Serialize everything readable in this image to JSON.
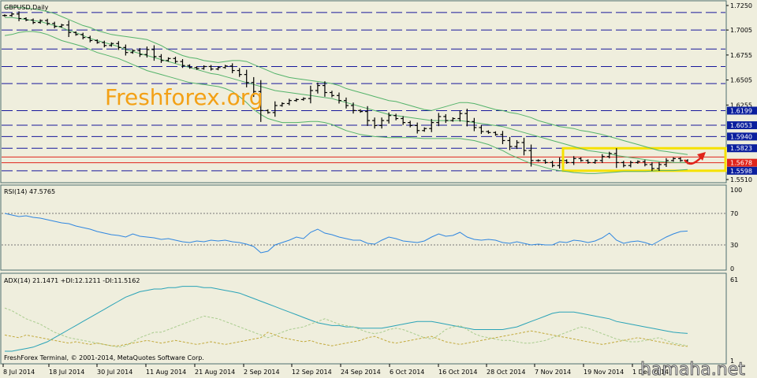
{
  "chart_data": [
    {
      "type": "ohlc",
      "title": "GBPUSD,Daily",
      "ylim": [
        1.551,
        1.725
      ],
      "price_ticks": [
        "1.7250",
        "1.7005",
        "1.6755",
        "1.6505",
        "1.6255",
        "1.5510"
      ],
      "level_labels": [
        {
          "text": "1.6199",
          "price": 1.6199,
          "color": "#0b1f9e"
        },
        {
          "text": "1.6053",
          "price": 1.6053,
          "color": "#0b1f9e"
        },
        {
          "text": "1.5940",
          "price": 1.594,
          "color": "#0b1f9e"
        },
        {
          "text": "1.5823",
          "price": 1.5823,
          "color": "#0b1f9e"
        },
        {
          "text": "1.5678",
          "price": 1.5678,
          "color": "#e0241b"
        },
        {
          "text": "1.5598",
          "price": 1.5598,
          "color": "#0b1f9e"
        }
      ],
      "dashed_levels": [
        1.718,
        1.7005,
        1.6815,
        1.664,
        1.647,
        1.6199,
        1.6053,
        1.594,
        1.5823,
        1.5598
      ],
      "red_levels": [
        1.5735,
        1.5678
      ],
      "yellow_box": {
        "from": 1.5598,
        "to": 1.5823
      },
      "close": [
        1.715,
        1.7165,
        1.712,
        1.7105,
        1.708,
        1.71,
        1.707,
        1.704,
        1.7055,
        1.698,
        1.696,
        1.693,
        1.69,
        1.688,
        1.685,
        1.687,
        1.683,
        1.678,
        1.68,
        1.676,
        1.681,
        1.674,
        1.67,
        1.672,
        1.669,
        1.665,
        1.663,
        1.662,
        1.664,
        1.6615,
        1.663,
        1.6645,
        1.66,
        1.656,
        1.648,
        1.639,
        1.62,
        1.618,
        1.625,
        1.627,
        1.63,
        1.631,
        1.632,
        1.64,
        1.645,
        1.638,
        1.635,
        1.63,
        1.625,
        1.62,
        1.619,
        1.61,
        1.605,
        1.61,
        1.615,
        1.612,
        1.608,
        1.605,
        1.6,
        1.602,
        1.608,
        1.614,
        1.61,
        1.612,
        1.617,
        1.609,
        1.603,
        1.599,
        1.598,
        1.596,
        1.59,
        1.584,
        1.588,
        1.58,
        1.57,
        1.57,
        1.568,
        1.565,
        1.57,
        1.568,
        1.572,
        1.57,
        1.568,
        1.57,
        1.574,
        1.577,
        1.568,
        1.565,
        1.568,
        1.569,
        1.566,
        1.562,
        1.566,
        1.57,
        1.572,
        1.57,
        1.5678
      ],
      "bb_upper": [
        1.723,
        1.7235,
        1.723,
        1.7225,
        1.7215,
        1.7205,
        1.719,
        1.717,
        1.714,
        1.711,
        1.708,
        1.705,
        1.703,
        1.7,
        1.698,
        1.696,
        1.695,
        1.694,
        1.693,
        1.692,
        1.691,
        1.688,
        1.685,
        1.681,
        1.678,
        1.675,
        1.673,
        1.672,
        1.67,
        1.669,
        1.668,
        1.669,
        1.67,
        1.67,
        1.669,
        1.666,
        1.663,
        1.66,
        1.657,
        1.655,
        1.653,
        1.652,
        1.651,
        1.65,
        1.649,
        1.648,
        1.647,
        1.645,
        1.642,
        1.64,
        1.638,
        1.636,
        1.634,
        1.632,
        1.63,
        1.629,
        1.627,
        1.625,
        1.623,
        1.621,
        1.62,
        1.622,
        1.624,
        1.626,
        1.628,
        1.628,
        1.627,
        1.625,
        1.623,
        1.621,
        1.62,
        1.618,
        1.617,
        1.615,
        1.613,
        1.61,
        1.608,
        1.606,
        1.604,
        1.603,
        1.602,
        1.6,
        1.599,
        1.5975,
        1.596,
        1.594,
        1.592,
        1.59,
        1.588,
        1.586,
        1.584,
        1.582,
        1.58,
        1.579,
        1.578,
        1.577,
        1.576
      ],
      "bb_middle": [
        1.713,
        1.713,
        1.712,
        1.711,
        1.71,
        1.709,
        1.707,
        1.705,
        1.703,
        1.7,
        1.698,
        1.695,
        1.692,
        1.69,
        1.688,
        1.686,
        1.684,
        1.681,
        1.679,
        1.677,
        1.675,
        1.673,
        1.671,
        1.669,
        1.667,
        1.665,
        1.663,
        1.661,
        1.659,
        1.657,
        1.656,
        1.654,
        1.652,
        1.65,
        1.648,
        1.646,
        1.644,
        1.642,
        1.64,
        1.639,
        1.638,
        1.637,
        1.636,
        1.635,
        1.634,
        1.633,
        1.632,
        1.63,
        1.628,
        1.626,
        1.624,
        1.622,
        1.62,
        1.618,
        1.616,
        1.615,
        1.614,
        1.613,
        1.612,
        1.611,
        1.61,
        1.61,
        1.61,
        1.61,
        1.61,
        1.609,
        1.608,
        1.607,
        1.606,
        1.605,
        1.604,
        1.602,
        1.6,
        1.598,
        1.596,
        1.594,
        1.592,
        1.59,
        1.588,
        1.586,
        1.584,
        1.582,
        1.58,
        1.579,
        1.578,
        1.577,
        1.575,
        1.574,
        1.573,
        1.572,
        1.571,
        1.57,
        1.569,
        1.5685,
        1.568,
        1.568,
        1.568
      ],
      "bb_lower": [
        1.695,
        1.696,
        1.698,
        1.699,
        1.699,
        1.698,
        1.696,
        1.693,
        1.69,
        1.688,
        1.686,
        1.684,
        1.681,
        1.678,
        1.676,
        1.674,
        1.672,
        1.669,
        1.666,
        1.663,
        1.66,
        1.658,
        1.656,
        1.654,
        1.652,
        1.65,
        1.648,
        1.647,
        1.646,
        1.645,
        1.644,
        1.642,
        1.639,
        1.634,
        1.628,
        1.621,
        1.616,
        1.612,
        1.61,
        1.608,
        1.608,
        1.608,
        1.6085,
        1.609,
        1.609,
        1.608,
        1.606,
        1.603,
        1.6,
        1.598,
        1.596,
        1.595,
        1.594,
        1.5935,
        1.593,
        1.593,
        1.593,
        1.593,
        1.5925,
        1.592,
        1.592,
        1.592,
        1.592,
        1.592,
        1.592,
        1.591,
        1.59,
        1.588,
        1.586,
        1.583,
        1.58,
        1.576,
        1.573,
        1.57,
        1.567,
        1.565,
        1.563,
        1.561,
        1.56,
        1.559,
        1.558,
        1.5575,
        1.557,
        1.557,
        1.5575,
        1.558,
        1.5585,
        1.559,
        1.559,
        1.559,
        1.559,
        1.5595,
        1.56,
        1.56,
        1.56,
        1.5605,
        1.561
      ]
    },
    {
      "type": "line",
      "title": "RSI(14) 47.5765",
      "ylim": [
        0,
        100
      ],
      "ticks": [
        "100",
        "70",
        "30",
        "0"
      ],
      "levels": [
        70,
        30
      ],
      "values": [
        70,
        68,
        66,
        67,
        65,
        64,
        62,
        60,
        58,
        57,
        54,
        52,
        50,
        47,
        45,
        43,
        42,
        40,
        44,
        41,
        40,
        39,
        37,
        38,
        36,
        34,
        33,
        35,
        34,
        36,
        35,
        36,
        34,
        33,
        31,
        28,
        20,
        22,
        30,
        33,
        36,
        40,
        38,
        46,
        50,
        45,
        43,
        40,
        38,
        36,
        36,
        32,
        31,
        36,
        40,
        38,
        35,
        34,
        33,
        35,
        40,
        44,
        41,
        42,
        46,
        40,
        37,
        36,
        37,
        36,
        33,
        32,
        34,
        32,
        30,
        31,
        30,
        30,
        34,
        33,
        36,
        35,
        33,
        35,
        39,
        45,
        36,
        32,
        34,
        35,
        33,
        30,
        35,
        40,
        44,
        47,
        47.5765
      ]
    },
    {
      "type": "line",
      "title": "ADX(14) 21.1471 +DI:12.1211 -DI:11.5162",
      "ticks": [
        "61",
        "1"
      ],
      "series": [
        {
          "name": "ADX",
          "color": "#2aa3b7",
          "values": [
            8,
            8,
            9,
            10,
            11,
            13,
            15,
            18,
            21,
            24,
            27,
            30,
            33,
            36,
            39,
            42,
            45,
            48,
            50,
            52,
            53,
            54,
            54,
            55,
            55,
            56,
            56,
            56,
            55,
            55,
            54,
            53,
            52,
            51,
            49,
            47,
            45,
            43,
            41,
            39,
            37,
            35,
            33,
            31,
            29,
            28,
            27,
            27,
            26,
            26,
            25,
            25,
            25,
            25,
            26,
            27,
            28,
            29,
            30,
            30,
            30,
            29,
            28,
            27,
            26,
            25,
            24,
            24,
            24,
            24,
            24,
            25,
            26,
            28,
            30,
            32,
            34,
            36,
            37,
            37,
            37,
            36,
            35,
            34,
            33,
            32,
            30,
            29,
            28,
            27,
            26,
            25,
            24,
            23,
            22,
            21.5,
            21.1471
          ]
        },
        {
          "name": "+DI",
          "color": "#a9cc8e",
          "values": [
            40,
            38,
            35,
            32,
            30,
            28,
            25,
            22,
            20,
            18,
            17,
            16,
            15,
            14,
            13,
            12,
            11,
            12,
            15,
            18,
            20,
            22,
            22,
            24,
            26,
            28,
            30,
            32,
            34,
            33,
            32,
            30,
            28,
            26,
            24,
            22,
            20,
            18,
            20,
            22,
            24,
            25,
            26,
            28,
            30,
            32,
            30,
            28,
            27,
            26,
            24,
            22,
            21,
            22,
            24,
            25,
            24,
            22,
            20,
            18,
            17,
            20,
            24,
            26,
            27,
            24,
            21,
            19,
            18,
            17,
            16,
            16,
            15,
            14,
            14,
            15,
            16,
            18,
            20,
            22,
            24,
            26,
            25,
            23,
            21,
            19,
            17,
            16,
            15,
            15,
            16,
            17,
            18,
            16,
            14,
            13,
            12.1211
          ]
        },
        {
          "name": "-DI",
          "color": "#c2a93b",
          "values": [
            20,
            19,
            18,
            20,
            19,
            18,
            17,
            16,
            15,
            14,
            15,
            14,
            13,
            14,
            13,
            12,
            12,
            13,
            14,
            15,
            16,
            15,
            14,
            15,
            16,
            15,
            14,
            13,
            14,
            15,
            14,
            13,
            14,
            15,
            16,
            17,
            18,
            22,
            20,
            18,
            17,
            16,
            15,
            16,
            14,
            13,
            12,
            13,
            14,
            15,
            16,
            18,
            19,
            17,
            15,
            14,
            15,
            16,
            17,
            18,
            19,
            17,
            15,
            14,
            13,
            14,
            15,
            16,
            17,
            18,
            19,
            20,
            21,
            22,
            23,
            22,
            21,
            20,
            19,
            18,
            17,
            16,
            15,
            14,
            13,
            14,
            15,
            16,
            17,
            18,
            17,
            16,
            15,
            14,
            13,
            12,
            11.5162
          ]
        }
      ]
    }
  ],
  "x_ticks": [
    "8 Jul 2014",
    "18 Jul 2014",
    "30 Jul 2014",
    "11 Aug 2014",
    "21 Aug 2014",
    "2 Sep 2014",
    "12 Sep 2014",
    "24 Sep 2014",
    "6 Oct 2014",
    "16 Oct 2014",
    "28 Oct 2014",
    "7 Nov 2014",
    "19 Nov 2014",
    "1 Dec 2014"
  ],
  "watermark": "Freshforex.org",
  "copyright": "FreshForex Terminal, © 2001-2014, MetaQuotes Software Corp.",
  "site_watermark": "hamaha.net",
  "colors": {
    "background": "#efeedd",
    "grid": "#17179b",
    "price_bars": "#000000",
    "bands": "#54b36a",
    "rsi": "#2f86e0",
    "adx": "#2aa3b7",
    "arrow": "#e0241b",
    "box": "#f6e100"
  }
}
